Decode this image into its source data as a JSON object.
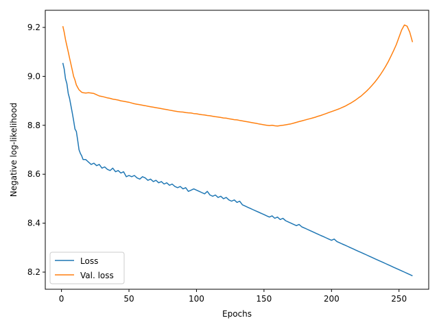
{
  "chart_data": {
    "type": "line",
    "title": "",
    "xlabel": "Epochs",
    "ylabel": "Negative log-likelihood",
    "xlim": [
      -12,
      272
    ],
    "ylim": [
      8.13,
      9.27
    ],
    "xticks": [
      0,
      50,
      100,
      150,
      200,
      250
    ],
    "yticks": [
      8.2,
      8.4,
      8.6,
      8.8,
      9.0,
      9.2
    ],
    "ytick_format": 1,
    "grid": false,
    "legend": {
      "position": "lower-left"
    },
    "series": [
      {
        "name": "Loss",
        "color": "#1f77b4",
        "points": [
          [
            1,
            9.055
          ],
          [
            2,
            9.03
          ],
          [
            3,
            8.99
          ],
          [
            4,
            8.97
          ],
          [
            5,
            8.93
          ],
          [
            6,
            8.91
          ],
          [
            7,
            8.88
          ],
          [
            8,
            8.85
          ],
          [
            9,
            8.82
          ],
          [
            10,
            8.785
          ],
          [
            11,
            8.775
          ],
          [
            12,
            8.74
          ],
          [
            13,
            8.7
          ],
          [
            14,
            8.685
          ],
          [
            15,
            8.675
          ],
          [
            16,
            8.66
          ],
          [
            18,
            8.66
          ],
          [
            20,
            8.65
          ],
          [
            22,
            8.64
          ],
          [
            24,
            8.645
          ],
          [
            26,
            8.635
          ],
          [
            28,
            8.64
          ],
          [
            30,
            8.625
          ],
          [
            32,
            8.63
          ],
          [
            34,
            8.62
          ],
          [
            36,
            8.615
          ],
          [
            38,
            8.625
          ],
          [
            40,
            8.61
          ],
          [
            42,
            8.615
          ],
          [
            44,
            8.605
          ],
          [
            46,
            8.61
          ],
          [
            48,
            8.59
          ],
          [
            50,
            8.595
          ],
          [
            52,
            8.59
          ],
          [
            54,
            8.595
          ],
          [
            56,
            8.585
          ],
          [
            58,
            8.58
          ],
          [
            60,
            8.59
          ],
          [
            62,
            8.585
          ],
          [
            64,
            8.575
          ],
          [
            66,
            8.58
          ],
          [
            68,
            8.57
          ],
          [
            70,
            8.575
          ],
          [
            72,
            8.565
          ],
          [
            74,
            8.57
          ],
          [
            76,
            8.56
          ],
          [
            78,
            8.565
          ],
          [
            80,
            8.555
          ],
          [
            82,
            8.56
          ],
          [
            84,
            8.55
          ],
          [
            86,
            8.545
          ],
          [
            88,
            8.55
          ],
          [
            90,
            8.54
          ],
          [
            92,
            8.545
          ],
          [
            94,
            8.53
          ],
          [
            96,
            8.535
          ],
          [
            98,
            8.54
          ],
          [
            100,
            8.535
          ],
          [
            102,
            8.53
          ],
          [
            104,
            8.525
          ],
          [
            106,
            8.52
          ],
          [
            108,
            8.53
          ],
          [
            110,
            8.515
          ],
          [
            112,
            8.51
          ],
          [
            114,
            8.515
          ],
          [
            116,
            8.505
          ],
          [
            118,
            8.51
          ],
          [
            120,
            8.5
          ],
          [
            122,
            8.505
          ],
          [
            124,
            8.495
          ],
          [
            126,
            8.49
          ],
          [
            128,
            8.495
          ],
          [
            130,
            8.485
          ],
          [
            132,
            8.49
          ],
          [
            134,
            8.475
          ],
          [
            136,
            8.47
          ],
          [
            138,
            8.465
          ],
          [
            140,
            8.46
          ],
          [
            142,
            8.455
          ],
          [
            144,
            8.45
          ],
          [
            146,
            8.445
          ],
          [
            148,
            8.44
          ],
          [
            150,
            8.435
          ],
          [
            152,
            8.43
          ],
          [
            154,
            8.425
          ],
          [
            156,
            8.43
          ],
          [
            158,
            8.42
          ],
          [
            160,
            8.425
          ],
          [
            162,
            8.415
          ],
          [
            164,
            8.42
          ],
          [
            166,
            8.41
          ],
          [
            168,
            8.405
          ],
          [
            170,
            8.4
          ],
          [
            172,
            8.395
          ],
          [
            174,
            8.39
          ],
          [
            176,
            8.395
          ],
          [
            178,
            8.385
          ],
          [
            180,
            8.38
          ],
          [
            182,
            8.375
          ],
          [
            184,
            8.37
          ],
          [
            186,
            8.365
          ],
          [
            188,
            8.36
          ],
          [
            190,
            8.355
          ],
          [
            192,
            8.35
          ],
          [
            194,
            8.345
          ],
          [
            196,
            8.34
          ],
          [
            198,
            8.335
          ],
          [
            200,
            8.33
          ],
          [
            202,
            8.335
          ],
          [
            204,
            8.325
          ],
          [
            206,
            8.32
          ],
          [
            208,
            8.315
          ],
          [
            210,
            8.31
          ],
          [
            212,
            8.305
          ],
          [
            214,
            8.3
          ],
          [
            216,
            8.295
          ],
          [
            218,
            8.29
          ],
          [
            220,
            8.285
          ],
          [
            222,
            8.28
          ],
          [
            224,
            8.275
          ],
          [
            226,
            8.27
          ],
          [
            228,
            8.265
          ],
          [
            230,
            8.26
          ],
          [
            232,
            8.255
          ],
          [
            234,
            8.25
          ],
          [
            236,
            8.245
          ],
          [
            238,
            8.24
          ],
          [
            240,
            8.235
          ],
          [
            242,
            8.23
          ],
          [
            244,
            8.225
          ],
          [
            246,
            8.22
          ],
          [
            248,
            8.215
          ],
          [
            250,
            8.21
          ],
          [
            252,
            8.205
          ],
          [
            254,
            8.2
          ],
          [
            256,
            8.195
          ],
          [
            258,
            8.19
          ],
          [
            260,
            8.185
          ]
        ]
      },
      {
        "name": "Val. loss",
        "color": "#ff7f0e",
        "points": [
          [
            1,
            9.205
          ],
          [
            2,
            9.18
          ],
          [
            3,
            9.15
          ],
          [
            4,
            9.125
          ],
          [
            5,
            9.1
          ],
          [
            6,
            9.075
          ],
          [
            7,
            9.05
          ],
          [
            8,
            9.025
          ],
          [
            9,
            9.0
          ],
          [
            10,
            8.985
          ],
          [
            11,
            8.965
          ],
          [
            12,
            8.955
          ],
          [
            13,
            8.945
          ],
          [
            14,
            8.94
          ],
          [
            15,
            8.935
          ],
          [
            16,
            8.933
          ],
          [
            18,
            8.932
          ],
          [
            20,
            8.933
          ],
          [
            22,
            8.932
          ],
          [
            24,
            8.93
          ],
          [
            26,
            8.925
          ],
          [
            28,
            8.92
          ],
          [
            30,
            8.918
          ],
          [
            32,
            8.915
          ],
          [
            34,
            8.912
          ],
          [
            36,
            8.91
          ],
          [
            38,
            8.907
          ],
          [
            40,
            8.905
          ],
          [
            42,
            8.903
          ],
          [
            44,
            8.9
          ],
          [
            46,
            8.898
          ],
          [
            48,
            8.896
          ],
          [
            50,
            8.894
          ],
          [
            52,
            8.891
          ],
          [
            54,
            8.888
          ],
          [
            56,
            8.886
          ],
          [
            58,
            8.884
          ],
          [
            60,
            8.882
          ],
          [
            62,
            8.88
          ],
          [
            64,
            8.878
          ],
          [
            66,
            8.876
          ],
          [
            68,
            8.874
          ],
          [
            70,
            8.872
          ],
          [
            72,
            8.87
          ],
          [
            74,
            8.868
          ],
          [
            76,
            8.866
          ],
          [
            78,
            8.864
          ],
          [
            80,
            8.862
          ],
          [
            82,
            8.86
          ],
          [
            84,
            8.858
          ],
          [
            86,
            8.856
          ],
          [
            88,
            8.855
          ],
          [
            90,
            8.854
          ],
          [
            92,
            8.852
          ],
          [
            94,
            8.851
          ],
          [
            96,
            8.85
          ],
          [
            98,
            8.848
          ],
          [
            100,
            8.847
          ],
          [
            102,
            8.845
          ],
          [
            104,
            8.843
          ],
          [
            106,
            8.842
          ],
          [
            108,
            8.84
          ],
          [
            110,
            8.839
          ],
          [
            112,
            8.837
          ],
          [
            114,
            8.835
          ],
          [
            116,
            8.834
          ],
          [
            118,
            8.832
          ],
          [
            120,
            8.83
          ],
          [
            122,
            8.829
          ],
          [
            124,
            8.827
          ],
          [
            126,
            8.825
          ],
          [
            128,
            8.823
          ],
          [
            130,
            8.822
          ],
          [
            132,
            8.82
          ],
          [
            134,
            8.818
          ],
          [
            136,
            8.816
          ],
          [
            138,
            8.814
          ],
          [
            140,
            8.812
          ],
          [
            142,
            8.81
          ],
          [
            144,
            8.808
          ],
          [
            146,
            8.806
          ],
          [
            148,
            8.804
          ],
          [
            150,
            8.802
          ],
          [
            152,
            8.8
          ],
          [
            154,
            8.799
          ],
          [
            156,
            8.8
          ],
          [
            158,
            8.798
          ],
          [
            160,
            8.797
          ],
          [
            162,
            8.799
          ],
          [
            164,
            8.8
          ],
          [
            166,
            8.802
          ],
          [
            168,
            8.804
          ],
          [
            170,
            8.806
          ],
          [
            172,
            8.809
          ],
          [
            174,
            8.812
          ],
          [
            176,
            8.815
          ],
          [
            178,
            8.818
          ],
          [
            180,
            8.821
          ],
          [
            182,
            8.824
          ],
          [
            184,
            8.827
          ],
          [
            186,
            8.83
          ],
          [
            188,
            8.833
          ],
          [
            190,
            8.837
          ],
          [
            192,
            8.84
          ],
          [
            194,
            8.844
          ],
          [
            196,
            8.848
          ],
          [
            198,
            8.852
          ],
          [
            200,
            8.856
          ],
          [
            202,
            8.86
          ],
          [
            204,
            8.864
          ],
          [
            206,
            8.868
          ],
          [
            208,
            8.873
          ],
          [
            210,
            8.878
          ],
          [
            212,
            8.884
          ],
          [
            214,
            8.89
          ],
          [
            216,
            8.897
          ],
          [
            218,
            8.904
          ],
          [
            220,
            8.912
          ],
          [
            222,
            8.92
          ],
          [
            224,
            8.93
          ],
          [
            226,
            8.94
          ],
          [
            228,
            8.951
          ],
          [
            230,
            8.963
          ],
          [
            232,
            8.976
          ],
          [
            234,
            8.99
          ],
          [
            236,
            9.005
          ],
          [
            238,
            9.022
          ],
          [
            240,
            9.04
          ],
          [
            242,
            9.06
          ],
          [
            244,
            9.082
          ],
          [
            246,
            9.105
          ],
          [
            248,
            9.13
          ],
          [
            250,
            9.16
          ],
          [
            252,
            9.19
          ],
          [
            254,
            9.21
          ],
          [
            256,
            9.205
          ],
          [
            258,
            9.18
          ],
          [
            260,
            9.14
          ]
        ]
      }
    ]
  }
}
